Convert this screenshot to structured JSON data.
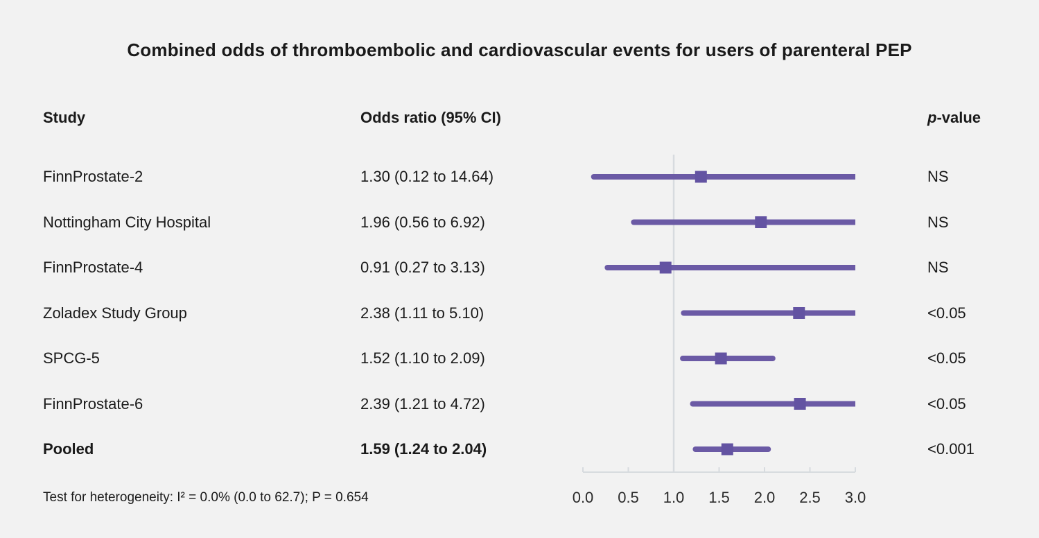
{
  "title": "Combined odds of thromboembolic and cardiovascular events for users of parenteral PEP",
  "columns": {
    "study": "Study",
    "odds_ratio": "Odds ratio (95% CI)",
    "p_italic": "p",
    "p_rest": "-value"
  },
  "footer": "Test for heterogeneity: I² = 0.0% (0.0 to 62.7); P = 0.654",
  "colors": {
    "background": "#f2f2f2",
    "accent_line": "#6b5aa5",
    "accent_marker": "#6353a2",
    "axis_gray": "#d7dbdf",
    "text": "#1a1a1a",
    "tick_text": "#2b2b2b"
  },
  "chart_data": {
    "type": "forest",
    "title": "Combined odds of thromboembolic and cardiovascular events for users of parenteral PEP",
    "xlabel": "Odds ratio",
    "xlim": [
      0.0,
      3.0
    ],
    "x_ticks": [
      0.0,
      0.5,
      1.0,
      1.5,
      2.0,
      2.5,
      3.0
    ],
    "reference_line_x": 1.0,
    "grid": false,
    "rows": [
      {
        "study": "FinnProstate-2",
        "or": 1.3,
        "ci_low": 0.12,
        "ci_high": 14.64,
        "label": "1.30 (0.12 to 14.64)",
        "p": "NS",
        "bold": false
      },
      {
        "study": "Nottingham City Hospital",
        "or": 1.96,
        "ci_low": 0.56,
        "ci_high": 6.92,
        "label": "1.96 (0.56 to 6.92)",
        "p": "NS",
        "bold": false
      },
      {
        "study": "FinnProstate-4",
        "or": 0.91,
        "ci_low": 0.27,
        "ci_high": 3.13,
        "label": "0.91 (0.27 to 3.13)",
        "p": "NS",
        "bold": false
      },
      {
        "study": "Zoladex Study Group",
        "or": 2.38,
        "ci_low": 1.11,
        "ci_high": 5.1,
        "label": "2.38 (1.11 to 5.10)",
        "p": "<0.05",
        "bold": false
      },
      {
        "study": "SPCG-5",
        "or": 1.52,
        "ci_low": 1.1,
        "ci_high": 2.09,
        "label": "1.52 (1.10 to 2.09)",
        "p": "<0.05",
        "bold": false
      },
      {
        "study": "FinnProstate-6",
        "or": 2.39,
        "ci_low": 1.21,
        "ci_high": 4.72,
        "label": "2.39 (1.21 to 4.72)",
        "p": "<0.05",
        "bold": false
      },
      {
        "study": "Pooled",
        "or": 1.59,
        "ci_low": 1.24,
        "ci_high": 2.04,
        "label": "1.59 (1.24 to 2.04)",
        "p": "<0.001",
        "bold": true
      }
    ]
  }
}
